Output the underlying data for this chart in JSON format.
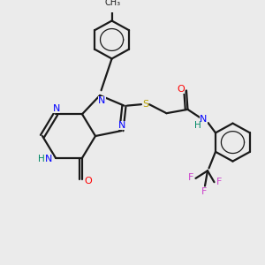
{
  "bg_color": "#ebebeb",
  "bond_color": "#1a1a1a",
  "N_color": "#0000ff",
  "O_color": "#ff0000",
  "S_color": "#b8a000",
  "F_color": "#cc44cc",
  "H_color": "#008866",
  "line_width": 1.6,
  "fs": 8.0,
  "xlim": [
    0,
    10
  ],
  "ylim": [
    0,
    10
  ]
}
